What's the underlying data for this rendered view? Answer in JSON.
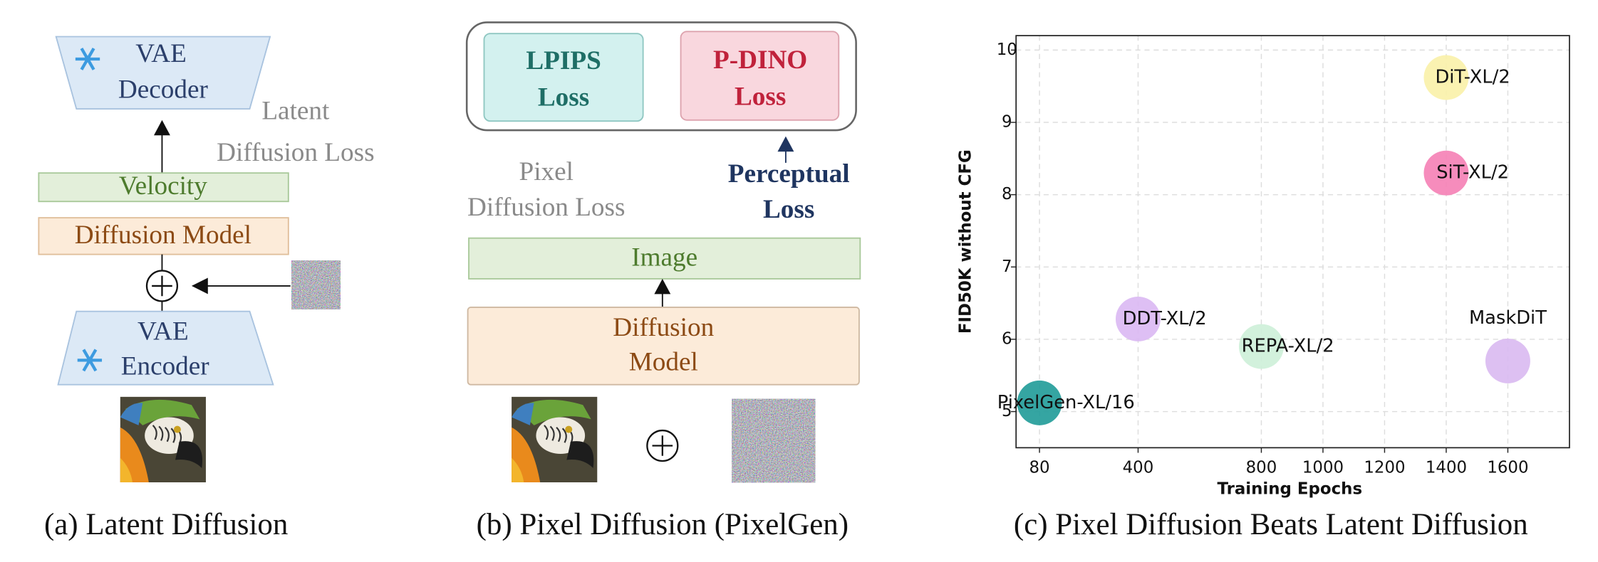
{
  "panel_a": {
    "caption": "(a) Latent Diffusion",
    "vae_decoder": [
      "VAE",
      "Decoder"
    ],
    "latent_loss": [
      "Latent",
      "Diffusion Loss"
    ],
    "velocity": "Velocity",
    "diffusion_model": "Diffusion Model",
    "vae_encoder": [
      "VAE",
      "Encoder"
    ]
  },
  "panel_b": {
    "caption": "(b) Pixel Diffusion (PixelGen)",
    "lpips": [
      "LPIPS",
      "Loss"
    ],
    "pdino": [
      "P-DINO",
      "Loss"
    ],
    "pixel_loss": [
      "Pixel",
      "Diffusion Loss"
    ],
    "perceptual_loss": [
      "Perceptual",
      "Loss"
    ],
    "image": "Image",
    "diffusion_model": [
      "Diffusion",
      "Model"
    ]
  },
  "chart_data": {
    "type": "scatter",
    "caption": "(c) Pixel Diffusion Beats Latent Diffusion",
    "xlabel": "Training Epochs",
    "ylabel": "FID50K without CFG",
    "labels": [
      "DiT-XL/2",
      "SiT-XL/2",
      "DDT-XL/2",
      "REPA-XL/2",
      "MaskDiT",
      "PixelGen-XL/16"
    ],
    "x": [
      1400,
      1400,
      400,
      800,
      1600,
      80
    ],
    "values": [
      9.62,
      8.3,
      6.28,
      5.9,
      5.7,
      5.12
    ],
    "colors": [
      "#f9f1a8",
      "#f57fb5",
      "#dab8f3",
      "#cdefd8",
      "#d9b9f1",
      "#1f9b98"
    ],
    "xlim": [
      4,
      1800
    ],
    "ylim": [
      4.5,
      10.2
    ],
    "xticks": [
      80,
      400,
      800,
      1000,
      1200,
      1400,
      1600
    ],
    "yticks": [
      5,
      6,
      7,
      8,
      9,
      10
    ],
    "grid": true
  }
}
